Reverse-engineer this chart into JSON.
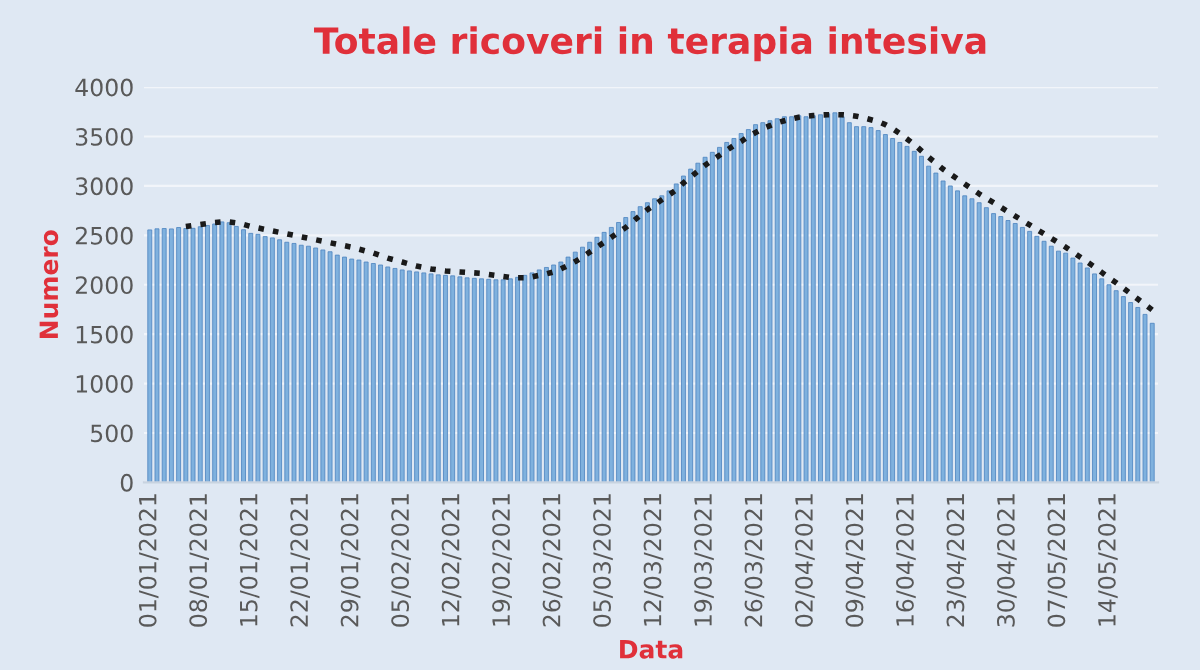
{
  "chart_data": {
    "type": "bar",
    "title": "Totale ricoveri in terapia intesiva",
    "xlabel": "Data",
    "ylabel": "Numero",
    "categories": [
      "01/01/2021",
      null,
      null,
      null,
      null,
      null,
      null,
      "08/01/2021",
      null,
      null,
      null,
      null,
      null,
      null,
      "15/01/2021",
      null,
      null,
      null,
      null,
      null,
      null,
      "22/01/2021",
      null,
      null,
      null,
      null,
      null,
      null,
      "29/01/2021",
      null,
      null,
      null,
      null,
      null,
      null,
      "05/02/2021",
      null,
      null,
      null,
      null,
      null,
      null,
      "12/02/2021",
      null,
      null,
      null,
      null,
      null,
      null,
      "19/02/2021",
      null,
      null,
      null,
      null,
      null,
      null,
      "26/02/2021",
      null,
      null,
      null,
      null,
      null,
      null,
      "05/03/2021",
      null,
      null,
      null,
      null,
      null,
      null,
      "12/03/2021",
      null,
      null,
      null,
      null,
      null,
      null,
      "19/03/2021",
      null,
      null,
      null,
      null,
      null,
      null,
      "26/03/2021",
      null,
      null,
      null,
      null,
      null,
      null,
      "02/04/2021",
      null,
      null,
      null,
      null,
      null,
      null,
      "09/04/2021",
      null,
      null,
      null,
      null,
      null,
      null,
      "16/04/2021",
      null,
      null,
      null,
      null,
      null,
      null,
      "23/04/2021",
      null,
      null,
      null,
      null,
      null,
      null,
      "30/04/2021",
      null,
      null,
      null,
      null,
      null,
      null,
      "07/05/2021",
      null,
      null,
      null,
      null,
      null,
      null,
      "14/05/2021",
      null,
      null,
      null,
      null,
      null,
      null
    ],
    "series": [
      {
        "color": "#7fb1de",
        "values": [
          2555,
          2566,
          2569,
          2565,
          2579,
          2569,
          2571,
          2587,
          2600,
          2615,
          2636,
          2628,
          2590,
          2557,
          2520,
          2510,
          2487,
          2474,
          2455,
          2430,
          2418,
          2400,
          2390,
          2372,
          2352,
          2334,
          2300,
          2280,
          2260,
          2250,
          2230,
          2215,
          2200,
          2180,
          2165,
          2150,
          2140,
          2130,
          2120,
          2110,
          2100,
          2095,
          2090,
          2080,
          2070,
          2065,
          2060,
          2055,
          2050,
          2050,
          2060,
          2075,
          2095,
          2120,
          2150,
          2175,
          2200,
          2230,
          2280,
          2330,
          2380,
          2430,
          2480,
          2530,
          2580,
          2630,
          2680,
          2740,
          2790,
          2830,
          2870,
          2900,
          2950,
          3020,
          3100,
          3170,
          3230,
          3290,
          3340,
          3390,
          3440,
          3480,
          3530,
          3570,
          3620,
          3640,
          3660,
          3680,
          3700,
          3700,
          3710,
          3700,
          3710,
          3720,
          3730,
          3740,
          3700,
          3640,
          3600,
          3600,
          3590,
          3560,
          3520,
          3480,
          3440,
          3400,
          3350,
          3300,
          3200,
          3130,
          3050,
          3000,
          2950,
          2900,
          2870,
          2830,
          2780,
          2720,
          2690,
          2650,
          2620,
          2580,
          2540,
          2490,
          2440,
          2390,
          2340,
          2320,
          2270,
          2220,
          2170,
          2110,
          2060,
          2000,
          1940,
          1880,
          1820,
          1770,
          1700,
          1610
        ]
      },
      {
        "type": "line",
        "color": "#1a1a1a",
        "line_style": "dotted",
        "values": [
          null,
          null,
          null,
          null,
          null,
          2590,
          2600,
          2610,
          2620,
          2630,
          2635,
          2635,
          2625,
          2610,
          2590,
          2575,
          2560,
          2545,
          2530,
          2515,
          2500,
          2485,
          2470,
          2455,
          2440,
          2425,
          2410,
          2395,
          2380,
          2360,
          2340,
          2320,
          2295,
          2270,
          2250,
          2230,
          2210,
          2190,
          2175,
          2160,
          2150,
          2140,
          2135,
          2130,
          2125,
          2120,
          2115,
          2105,
          2095,
          2085,
          2075,
          2070,
          2070,
          2080,
          2095,
          2110,
          2130,
          2160,
          2195,
          2235,
          2280,
          2330,
          2380,
          2430,
          2480,
          2530,
          2580,
          2640,
          2700,
          2760,
          2810,
          2860,
          2910,
          2960,
          3030,
          3090,
          3150,
          3210,
          3260,
          3310,
          3360,
          3410,
          3450,
          3500,
          3540,
          3580,
          3610,
          3640,
          3660,
          3680,
          3695,
          3705,
          3712,
          3718,
          3720,
          3722,
          3720,
          3715,
          3705,
          3690,
          3670,
          3650,
          3620,
          3580,
          3530,
          3475,
          3420,
          3355,
          3290,
          3230,
          3170,
          3120,
          3070,
          3020,
          2970,
          2920,
          2875,
          2830,
          2785,
          2740,
          2695,
          2650,
          2605,
          2560,
          2515,
          2470,
          2425,
          2380,
          2330,
          2280,
          2230,
          2180,
          2125,
          2070,
          2020,
          1965,
          1910,
          1855,
          1800,
          1745
        ]
      }
    ],
    "ylim": [
      0,
      4000
    ],
    "yticks": [
      0,
      500,
      1000,
      1500,
      2000,
      2500,
      3000,
      3500,
      4000
    ],
    "grid": "y",
    "legend": false
  }
}
